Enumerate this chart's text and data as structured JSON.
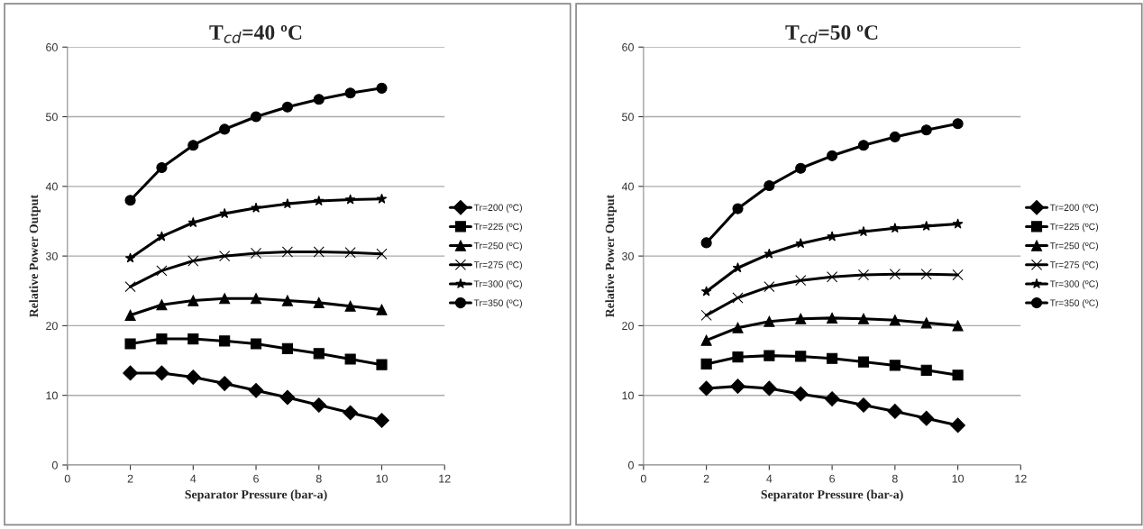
{
  "chart_data": [
    {
      "type": "line",
      "title": "T$_{cd}$=40 ºC",
      "xlabel": "Separator Pressure (bar-a)",
      "ylabel": "Relative Power Output",
      "xlim": [
        0,
        12
      ],
      "xticks": [
        0,
        2,
        4,
        6,
        8,
        10,
        12
      ],
      "ylim": [
        0,
        60
      ],
      "yticks": [
        0,
        10,
        20,
        30,
        40,
        50,
        60
      ],
      "grid": "y",
      "legend": "right",
      "line_style": "solid",
      "x": [
        2,
        3,
        4,
        5,
        6,
        7,
        8,
        9,
        10
      ],
      "series": [
        {
          "name": "Tr=200 (ºC)",
          "color": "#000000",
          "marker": "diamond",
          "values": [
            13.2,
            13.2,
            12.6,
            11.7,
            10.7,
            9.7,
            8.6,
            7.5,
            6.4
          ]
        },
        {
          "name": "Tr=225 (ºC)",
          "color": "#000000",
          "marker": "square",
          "values": [
            17.4,
            18.1,
            18.1,
            17.8,
            17.4,
            16.7,
            16.0,
            15.2,
            14.4
          ]
        },
        {
          "name": "Tr=250 (ºC)",
          "color": "#000000",
          "marker": "triangle",
          "values": [
            21.5,
            23.0,
            23.6,
            23.9,
            23.9,
            23.6,
            23.3,
            22.8,
            22.3
          ]
        },
        {
          "name": "Tr=275 (ºC)",
          "color": "#000000",
          "marker": "cross",
          "values": [
            25.6,
            27.9,
            29.3,
            30.0,
            30.4,
            30.6,
            30.6,
            30.5,
            30.3
          ]
        },
        {
          "name": "Tr=300 (ºC)",
          "color": "#000000",
          "marker": "star",
          "values": [
            29.7,
            32.8,
            34.8,
            36.1,
            36.9,
            37.5,
            37.9,
            38.1,
            38.2
          ]
        },
        {
          "name": "Tr=350 (ºC)",
          "color": "#000000",
          "marker": "circle",
          "values": [
            38.0,
            42.7,
            45.9,
            48.2,
            50.0,
            51.4,
            52.5,
            53.4,
            54.1
          ]
        }
      ]
    },
    {
      "type": "line",
      "title": "T$_{cd}$=50 ºC",
      "xlabel": "Separator Pressure (bar-a)",
      "ylabel": "Relative Power Output",
      "xlim": [
        0,
        12
      ],
      "xticks": [
        0,
        2,
        4,
        6,
        8,
        10,
        12
      ],
      "ylim": [
        0,
        60
      ],
      "yticks": [
        0,
        10,
        20,
        30,
        40,
        50,
        60
      ],
      "grid": "y",
      "legend": "right",
      "line_style": "solid",
      "x": [
        2,
        3,
        4,
        5,
        6,
        7,
        8,
        9,
        10
      ],
      "series": [
        {
          "name": "Tr=200 (ºC)",
          "color": "#000000",
          "marker": "diamond",
          "values": [
            11.0,
            11.3,
            11.0,
            10.2,
            9.5,
            8.6,
            7.7,
            6.7,
            5.7
          ]
        },
        {
          "name": "Tr=225 (ºC)",
          "color": "#000000",
          "marker": "square",
          "values": [
            14.5,
            15.5,
            15.7,
            15.6,
            15.3,
            14.8,
            14.3,
            13.6,
            12.9
          ]
        },
        {
          "name": "Tr=250 (ºC)",
          "color": "#000000",
          "marker": "triangle",
          "values": [
            17.9,
            19.7,
            20.6,
            21.0,
            21.1,
            21.0,
            20.8,
            20.4,
            20.0
          ]
        },
        {
          "name": "Tr=275 (ºC)",
          "color": "#000000",
          "marker": "cross",
          "values": [
            21.5,
            24.0,
            25.6,
            26.5,
            27.0,
            27.3,
            27.4,
            27.4,
            27.3
          ]
        },
        {
          "name": "Tr=300 (ºC)",
          "color": "#000000",
          "marker": "star",
          "values": [
            24.9,
            28.3,
            30.3,
            31.8,
            32.8,
            33.5,
            34.0,
            34.3,
            34.6
          ]
        },
        {
          "name": "Tr=350 (ºC)",
          "color": "#000000",
          "marker": "circle",
          "values": [
            31.9,
            36.8,
            40.1,
            42.6,
            44.4,
            45.9,
            47.1,
            48.1,
            49.0
          ]
        }
      ]
    }
  ]
}
